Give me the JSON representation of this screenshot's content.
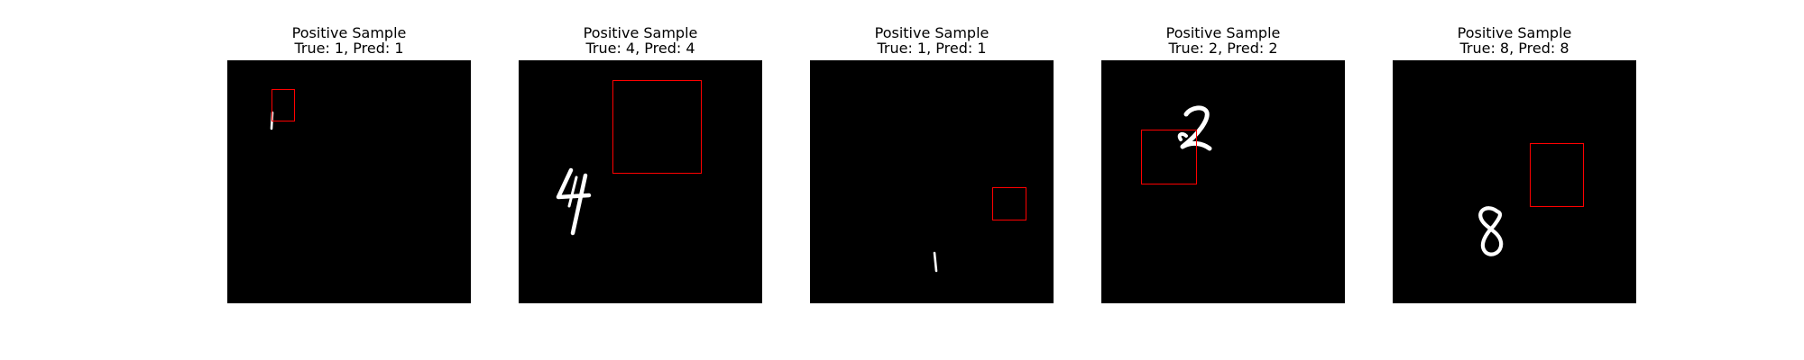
{
  "figure": {
    "box_color": "#ff0000",
    "background": "#000000",
    "digit_color": "#ffffff",
    "samples": [
      {
        "line1": "Positive Sample",
        "line2": "True: 1, Pred: 1",
        "true_label": 1,
        "pred_label": 1,
        "digit_icon": "digit-1-icon"
      },
      {
        "line1": "Positive Sample",
        "line2": "True: 4, Pred: 4",
        "true_label": 4,
        "pred_label": 4,
        "digit_icon": "digit-4-icon"
      },
      {
        "line1": "Positive Sample",
        "line2": "True: 1, Pred: 1",
        "true_label": 1,
        "pred_label": 1,
        "digit_icon": "digit-1-icon"
      },
      {
        "line1": "Positive Sample",
        "line2": "True: 2, Pred: 2",
        "true_label": 2,
        "pred_label": 2,
        "digit_icon": "digit-2-icon"
      },
      {
        "line1": "Positive Sample",
        "line2": "True: 8, Pred: 8",
        "true_label": 8,
        "pred_label": 8,
        "digit_icon": "digit-8-icon"
      }
    ]
  }
}
